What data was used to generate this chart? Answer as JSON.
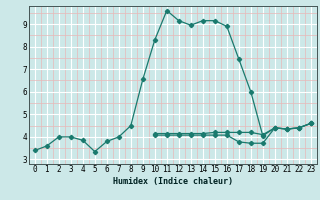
{
  "xlabel": "Humidex (Indice chaleur)",
  "bg_color": "#cce8e8",
  "grid_major_color": "#ffffff",
  "grid_minor_color": "#e8b8b8",
  "line_color": "#1a7a6e",
  "xlim": [
    -0.5,
    23.5
  ],
  "ylim": [
    2.8,
    9.8
  ],
  "yticks": [
    3,
    4,
    5,
    6,
    7,
    8,
    9
  ],
  "xticks": [
    0,
    1,
    2,
    3,
    4,
    5,
    6,
    7,
    8,
    9,
    10,
    11,
    12,
    13,
    14,
    15,
    16,
    17,
    18,
    19,
    20,
    21,
    22,
    23
  ],
  "series1": [
    [
      0,
      3.4
    ],
    [
      1,
      3.6
    ],
    [
      2,
      4.0
    ],
    [
      3,
      4.0
    ],
    [
      4,
      3.85
    ],
    [
      5,
      3.35
    ],
    [
      6,
      3.8
    ],
    [
      7,
      4.0
    ],
    [
      8,
      4.5
    ],
    [
      9,
      6.55
    ],
    [
      10,
      8.3
    ],
    [
      11,
      9.6
    ],
    [
      12,
      9.15
    ],
    [
      13,
      8.95
    ],
    [
      14,
      9.15
    ],
    [
      15,
      9.15
    ],
    [
      16,
      8.9
    ],
    [
      17,
      7.45
    ],
    [
      18,
      6.0
    ],
    [
      19,
      4.05
    ],
    [
      20,
      4.4
    ],
    [
      21,
      4.35
    ],
    [
      22,
      4.4
    ],
    [
      23,
      4.6
    ]
  ],
  "series2": [
    [
      10,
      4.15
    ],
    [
      11,
      4.15
    ],
    [
      12,
      4.15
    ],
    [
      13,
      4.15
    ],
    [
      14,
      4.15
    ],
    [
      15,
      4.2
    ],
    [
      16,
      4.2
    ],
    [
      17,
      4.2
    ],
    [
      18,
      4.2
    ],
    [
      19,
      4.1
    ],
    [
      20,
      4.4
    ],
    [
      21,
      4.35
    ],
    [
      22,
      4.4
    ],
    [
      23,
      4.6
    ]
  ],
  "series3": [
    [
      10,
      4.08
    ],
    [
      11,
      4.08
    ],
    [
      12,
      4.08
    ],
    [
      13,
      4.08
    ],
    [
      14,
      4.08
    ],
    [
      15,
      4.08
    ],
    [
      16,
      4.08
    ],
    [
      17,
      3.78
    ],
    [
      18,
      3.72
    ],
    [
      19,
      3.72
    ],
    [
      20,
      4.4
    ],
    [
      21,
      4.35
    ],
    [
      22,
      4.4
    ],
    [
      23,
      4.6
    ]
  ]
}
